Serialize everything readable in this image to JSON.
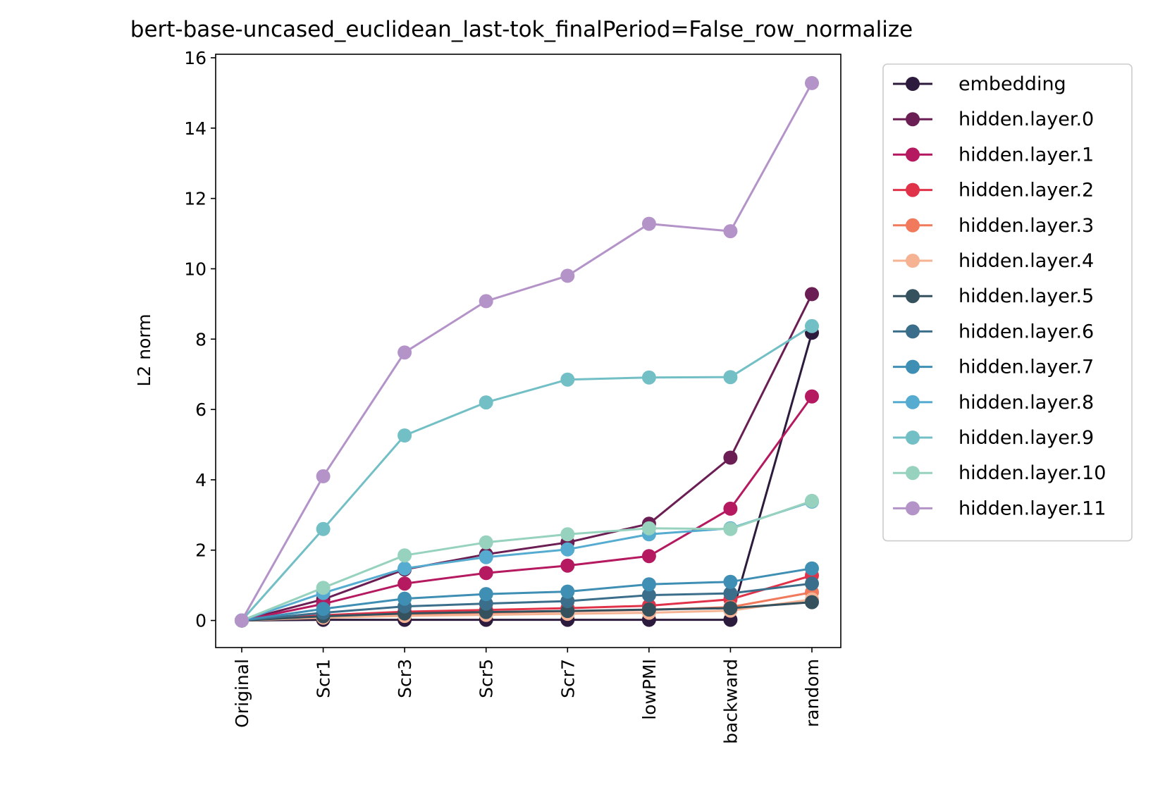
{
  "chart_data": {
    "type": "line",
    "title": "bert-base-uncased_euclidean_last-tok_finalPeriod=False_row_normalize",
    "xlabel": "",
    "ylabel": "L2 norm",
    "categories": [
      "Original",
      "Scr1",
      "Scr3",
      "Scr5",
      "Scr7",
      "lowPMI",
      "backward",
      "random"
    ],
    "ylim": [
      -0.77,
      16.1
    ],
    "yticks": [
      0,
      2,
      4,
      6,
      8,
      10,
      12,
      14,
      16
    ],
    "grid": false,
    "legend_position": "outside-right",
    "series": [
      {
        "name": "embedding",
        "color": "#2d1b3d",
        "values": [
          0,
          0.02,
          0.02,
          0.02,
          0.02,
          0.02,
          0.02,
          8.18
        ]
      },
      {
        "name": "hidden.layer.0",
        "color": "#6b1e53",
        "values": [
          0,
          0.6,
          1.45,
          1.88,
          2.22,
          2.75,
          4.63,
          9.28
        ]
      },
      {
        "name": "hidden.layer.1",
        "color": "#b5195f",
        "values": [
          0,
          0.47,
          1.05,
          1.35,
          1.56,
          1.83,
          3.18,
          6.37
        ]
      },
      {
        "name": "hidden.layer.2",
        "color": "#e0334a",
        "values": [
          0,
          0.15,
          0.25,
          0.3,
          0.35,
          0.42,
          0.6,
          1.28
        ]
      },
      {
        "name": "hidden.layer.3",
        "color": "#f07a5b",
        "values": [
          0,
          0.1,
          0.18,
          0.22,
          0.26,
          0.3,
          0.38,
          0.8
        ]
      },
      {
        "name": "hidden.layer.4",
        "color": "#f5b393",
        "values": [
          0,
          0.08,
          0.13,
          0.16,
          0.19,
          0.22,
          0.28,
          0.6
        ]
      },
      {
        "name": "hidden.layer.5",
        "color": "#34515d",
        "values": [
          0,
          0.12,
          0.2,
          0.24,
          0.27,
          0.31,
          0.35,
          0.52
        ]
      },
      {
        "name": "hidden.layer.6",
        "color": "#3b6e8a",
        "values": [
          0,
          0.22,
          0.4,
          0.48,
          0.55,
          0.72,
          0.77,
          1.05
        ]
      },
      {
        "name": "hidden.layer.7",
        "color": "#3f8fb5",
        "values": [
          0,
          0.33,
          0.62,
          0.75,
          0.82,
          1.03,
          1.1,
          1.48
        ]
      },
      {
        "name": "hidden.layer.8",
        "color": "#55abd0",
        "values": [
          0,
          0.78,
          1.48,
          1.8,
          2.02,
          2.45,
          2.62,
          3.38
        ]
      },
      {
        "name": "hidden.layer.9",
        "color": "#72bfc5",
        "values": [
          0,
          2.6,
          5.26,
          6.2,
          6.85,
          6.91,
          6.92,
          8.37
        ]
      },
      {
        "name": "hidden.layer.10",
        "color": "#96d2bd",
        "values": [
          0,
          0.93,
          1.85,
          2.22,
          2.45,
          2.62,
          2.6,
          3.4
        ]
      },
      {
        "name": "hidden.layer.11",
        "color": "#b493c8",
        "values": [
          0,
          4.1,
          7.62,
          9.08,
          9.8,
          11.28,
          11.07,
          15.28
        ]
      }
    ]
  }
}
